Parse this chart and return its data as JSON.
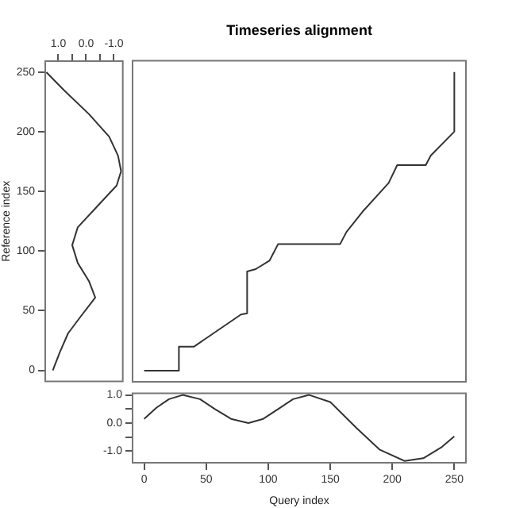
{
  "chart_data": [
    {
      "type": "line",
      "title": "Timeseries alignment",
      "tick_labels": false,
      "xlim": [
        -10,
        260
      ],
      "ylim": [
        -10,
        260
      ],
      "series": [
        {
          "color": "#333333",
          "x": [
            0,
            28,
            28,
            40,
            78,
            83,
            83,
            90,
            101,
            108,
            158,
            163,
            176,
            197,
            204,
            227,
            231,
            250,
            250
          ],
          "values": [
            0,
            0,
            20,
            20,
            47,
            48,
            83,
            85,
            92,
            106,
            106,
            116,
            133,
            157,
            172,
            172,
            180,
            200,
            250
          ]
        }
      ]
    },
    {
      "type": "line",
      "orientation": "horizontal",
      "ylabel": "Reference index",
      "xlim": [
        1.5,
        -1.35
      ],
      "xticks": [
        {
          "value": 1,
          "label": "1.0"
        },
        {
          "value": 0.5,
          "label": null
        },
        {
          "value": 0,
          "label": "0.0"
        },
        {
          "value": -0.5,
          "label": null
        },
        {
          "value": -1,
          "label": "-1.0"
        }
      ],
      "ylim": [
        -10,
        260
      ],
      "yticks": [
        0,
        50,
        100,
        150,
        200,
        250
      ],
      "series": [
        {
          "color": "#333333",
          "x": [
            0,
            15,
            31,
            45,
            61,
            75,
            90,
            105,
            120,
            140,
            155,
            167,
            180,
            196,
            215,
            235,
            250
          ],
          "values": [
            1.2,
            0.95,
            0.65,
            0.2,
            -0.33,
            -0.1,
            0.3,
            0.5,
            0.3,
            -0.5,
            -1.1,
            -1.26,
            -1.15,
            -0.83,
            -0.1,
            0.8,
            1.43
          ]
        }
      ]
    },
    {
      "type": "line",
      "xlabel": "Query index",
      "xlim": [
        -10,
        260
      ],
      "xticks": [
        0,
        50,
        100,
        150,
        200,
        250
      ],
      "ylim": [
        -1.44,
        1.09
      ],
      "yticks": [
        {
          "value": 1,
          "label": "1.0"
        },
        {
          "value": 0.5,
          "label": null
        },
        {
          "value": 0,
          "label": "0.0"
        },
        {
          "value": -0.5,
          "label": null
        },
        {
          "value": -1,
          "label": "-1.0"
        }
      ],
      "series": [
        {
          "color": "#333333",
          "x": [
            0,
            10,
            20,
            31,
            45,
            57,
            70,
            84,
            96,
            108,
            120,
            133,
            150,
            171,
            190,
            210,
            225,
            240,
            250
          ],
          "values": [
            0.15,
            0.55,
            0.85,
            1.0,
            0.85,
            0.5,
            0.15,
            0.0,
            0.15,
            0.5,
            0.85,
            1.0,
            0.75,
            -0.17,
            -0.95,
            -1.35,
            -1.25,
            -0.85,
            -0.47
          ]
        }
      ]
    }
  ]
}
